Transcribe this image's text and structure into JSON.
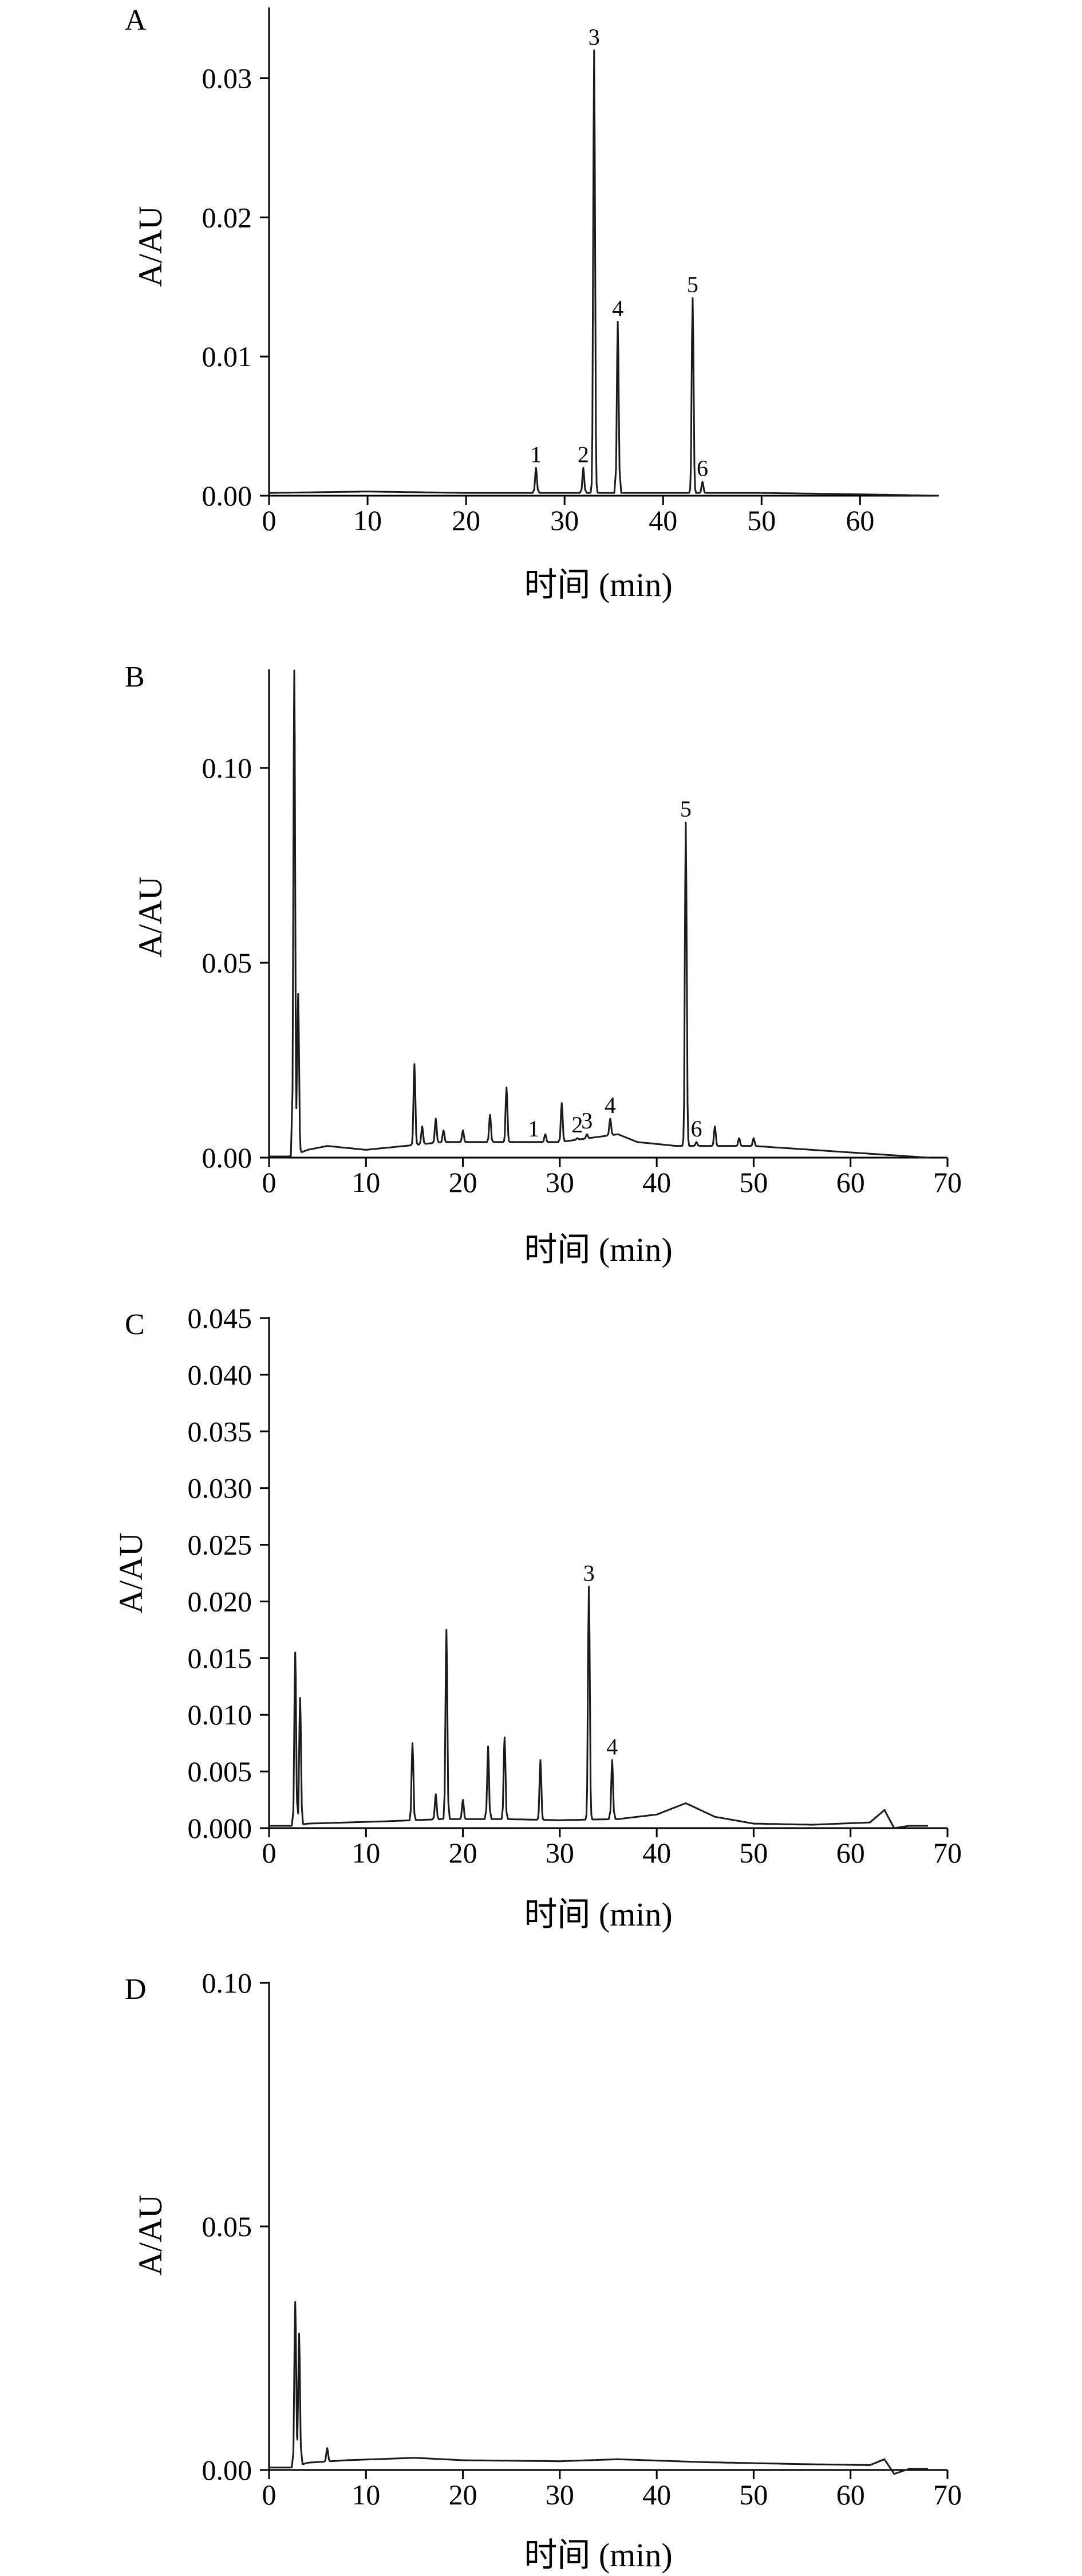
{
  "chart_data": [
    {
      "panel": "A",
      "type": "line",
      "xlabel": "时间 (min)",
      "ylabel": "A/AU",
      "xlim": [
        0,
        68
      ],
      "ylim": [
        0,
        0.035
      ],
      "xticks": [
        0,
        10,
        20,
        30,
        40,
        50,
        60
      ],
      "xtick_labels": [
        "0",
        "10",
        "20",
        "30",
        "40",
        "50",
        "60"
      ],
      "yticks": [
        0,
        0.01,
        0.02,
        0.03
      ],
      "ytick_labels": [
        "0.00",
        "0.01",
        "0.02",
        "0.03"
      ],
      "baseline": [
        [
          0,
          0.0002
        ],
        [
          10,
          0.0003
        ],
        [
          20,
          0.0002
        ],
        [
          27,
          0.0002
        ],
        [
          40,
          0.0002
        ],
        [
          50,
          0.0002
        ],
        [
          60,
          0.0001
        ],
        [
          68,
          0.0
        ]
      ],
      "peaks": [
        {
          "label": "1",
          "x": 27.1,
          "y": 0.002
        },
        {
          "label": "2",
          "x": 31.9,
          "y": 0.002
        },
        {
          "label": "3",
          "x": 33.0,
          "y": 0.032
        },
        {
          "label": "4",
          "x": 35.4,
          "y": 0.0125
        },
        {
          "label": "5",
          "x": 43.0,
          "y": 0.0142
        },
        {
          "label": "6",
          "x": 44.0,
          "y": 0.001
        }
      ]
    },
    {
      "panel": "B",
      "type": "line",
      "xlabel": "时间 (min)",
      "ylabel": "A/AU",
      "xlim": [
        0,
        70
      ],
      "ylim": [
        0,
        0.125
      ],
      "xticks": [
        0,
        10,
        20,
        30,
        40,
        50,
        60,
        70
      ],
      "xtick_labels": [
        "0",
        "10",
        "20",
        "30",
        "40",
        "50",
        "60",
        "70"
      ],
      "yticks": [
        0,
        0.05,
        0.1
      ],
      "ytick_labels": [
        "0.00",
        "0.05",
        "0.10"
      ],
      "baseline": [
        [
          0,
          0.0003
        ],
        [
          2.2,
          0.0003
        ],
        [
          4,
          0.002
        ],
        [
          6,
          0.003
        ],
        [
          10,
          0.002
        ],
        [
          14,
          0.003
        ],
        [
          18,
          0.004
        ],
        [
          24,
          0.004
        ],
        [
          30,
          0.004
        ],
        [
          36,
          0.006
        ],
        [
          38,
          0.004
        ],
        [
          42,
          0.003
        ],
        [
          46,
          0.003
        ],
        [
          50,
          0.003
        ],
        [
          56,
          0.002
        ],
        [
          62,
          0.001
        ],
        [
          68,
          0.0
        ]
      ],
      "peaks": [
        {
          "label": "",
          "x": 2.6,
          "y": 0.125
        },
        {
          "label": "",
          "x": 3.0,
          "y": 0.042
        },
        {
          "label": "",
          "x": 15.0,
          "y": 0.024
        },
        {
          "label": "",
          "x": 15.8,
          "y": 0.008
        },
        {
          "label": "",
          "x": 17.2,
          "y": 0.01
        },
        {
          "label": "",
          "x": 18.0,
          "y": 0.007
        },
        {
          "label": "",
          "x": 20.0,
          "y": 0.007
        },
        {
          "label": "",
          "x": 22.8,
          "y": 0.011
        },
        {
          "label": "",
          "x": 24.5,
          "y": 0.018
        },
        {
          "label": "",
          "x": 28.5,
          "y": 0.006
        },
        {
          "label": "",
          "x": 30.2,
          "y": 0.014
        },
        {
          "label": "1",
          "x": 27.3,
          "y": 0.004
        },
        {
          "label": "2",
          "x": 31.8,
          "y": 0.005
        },
        {
          "label": "3",
          "x": 32.8,
          "y": 0.006
        },
        {
          "label": "4",
          "x": 35.2,
          "y": 0.01
        },
        {
          "label": "5",
          "x": 43.0,
          "y": 0.086
        },
        {
          "label": "6",
          "x": 44.1,
          "y": 0.004
        },
        {
          "label": "",
          "x": 46.0,
          "y": 0.008
        },
        {
          "label": "",
          "x": 48.5,
          "y": 0.005
        },
        {
          "label": "",
          "x": 50.0,
          "y": 0.005
        }
      ]
    },
    {
      "panel": "C",
      "type": "line",
      "xlabel": "时间 (min)",
      "ylabel": "A/AU",
      "xlim": [
        0,
        70
      ],
      "ylim": [
        0,
        0.045
      ],
      "xticks": [
        0,
        10,
        20,
        30,
        40,
        50,
        60,
        70
      ],
      "xtick_labels": [
        "0",
        "10",
        "20",
        "30",
        "40",
        "50",
        "60",
        "70"
      ],
      "yticks": [
        0,
        0.005,
        0.01,
        0.015,
        0.02,
        0.025,
        0.03,
        0.035,
        0.04,
        0.045
      ],
      "ytick_labels": [
        "0.000",
        "0.005",
        "0.010",
        "0.015",
        "0.020",
        "0.025",
        "0.030",
        "0.035",
        "0.040",
        "0.045"
      ],
      "baseline": [
        [
          0,
          0.0002
        ],
        [
          2.4,
          0.0002
        ],
        [
          4,
          0.0004
        ],
        [
          8,
          0.0005
        ],
        [
          12,
          0.0006
        ],
        [
          18,
          0.0008
        ],
        [
          24,
          0.0008
        ],
        [
          30,
          0.0007
        ],
        [
          36,
          0.0008
        ],
        [
          40,
          0.0012
        ],
        [
          43,
          0.0022
        ],
        [
          46,
          0.001
        ],
        [
          50,
          0.0004
        ],
        [
          56,
          0.0003
        ],
        [
          62,
          0.0005
        ],
        [
          63.5,
          0.0016
        ],
        [
          64.5,
          0.0
        ],
        [
          66,
          0.0002
        ],
        [
          68,
          0.0002
        ]
      ],
      "peaks": [
        {
          "label": "",
          "x": 2.7,
          "y": 0.0155
        },
        {
          "label": "",
          "x": 3.2,
          "y": 0.0115
        },
        {
          "label": "",
          "x": 14.8,
          "y": 0.0075
        },
        {
          "label": "",
          "x": 17.2,
          "y": 0.003
        },
        {
          "label": "",
          "x": 18.3,
          "y": 0.0175
        },
        {
          "label": "",
          "x": 20.0,
          "y": 0.0025
        },
        {
          "label": "",
          "x": 22.6,
          "y": 0.0072
        },
        {
          "label": "",
          "x": 24.3,
          "y": 0.008
        },
        {
          "label": "",
          "x": 28.0,
          "y": 0.006
        },
        {
          "label": "3",
          "x": 33.0,
          "y": 0.0213
        },
        {
          "label": "4",
          "x": 35.4,
          "y": 0.006
        }
      ]
    },
    {
      "panel": "D",
      "type": "line",
      "xlabel": "时间 (min)",
      "ylabel": "A/AU",
      "xlim": [
        0,
        70
      ],
      "ylim": [
        0,
        0.1
      ],
      "xticks": [
        0,
        10,
        20,
        30,
        40,
        50,
        60,
        70
      ],
      "xtick_labels": [
        "0",
        "10",
        "20",
        "30",
        "40",
        "50",
        "60",
        "70"
      ],
      "yticks": [
        0,
        0.05,
        0.1
      ],
      "ytick_labels": [
        "0.00",
        "0.05",
        "0.10"
      ],
      "baseline": [
        [
          0,
          0.0005
        ],
        [
          2.3,
          0.0005
        ],
        [
          4,
          0.0015
        ],
        [
          8,
          0.002
        ],
        [
          15,
          0.0025
        ],
        [
          20,
          0.002
        ],
        [
          30,
          0.0018
        ],
        [
          36,
          0.0022
        ],
        [
          45,
          0.0016
        ],
        [
          55,
          0.0012
        ],
        [
          62,
          0.001
        ],
        [
          63.5,
          0.0022
        ],
        [
          64.5,
          -0.0008
        ],
        [
          66,
          0.0002
        ],
        [
          68,
          0.0002
        ]
      ],
      "peaks": [
        {
          "label": "",
          "x": 2.7,
          "y": 0.0345
        },
        {
          "label": "",
          "x": 3.1,
          "y": 0.028
        },
        {
          "label": "",
          "x": 6.0,
          "y": 0.0045
        }
      ]
    }
  ]
}
